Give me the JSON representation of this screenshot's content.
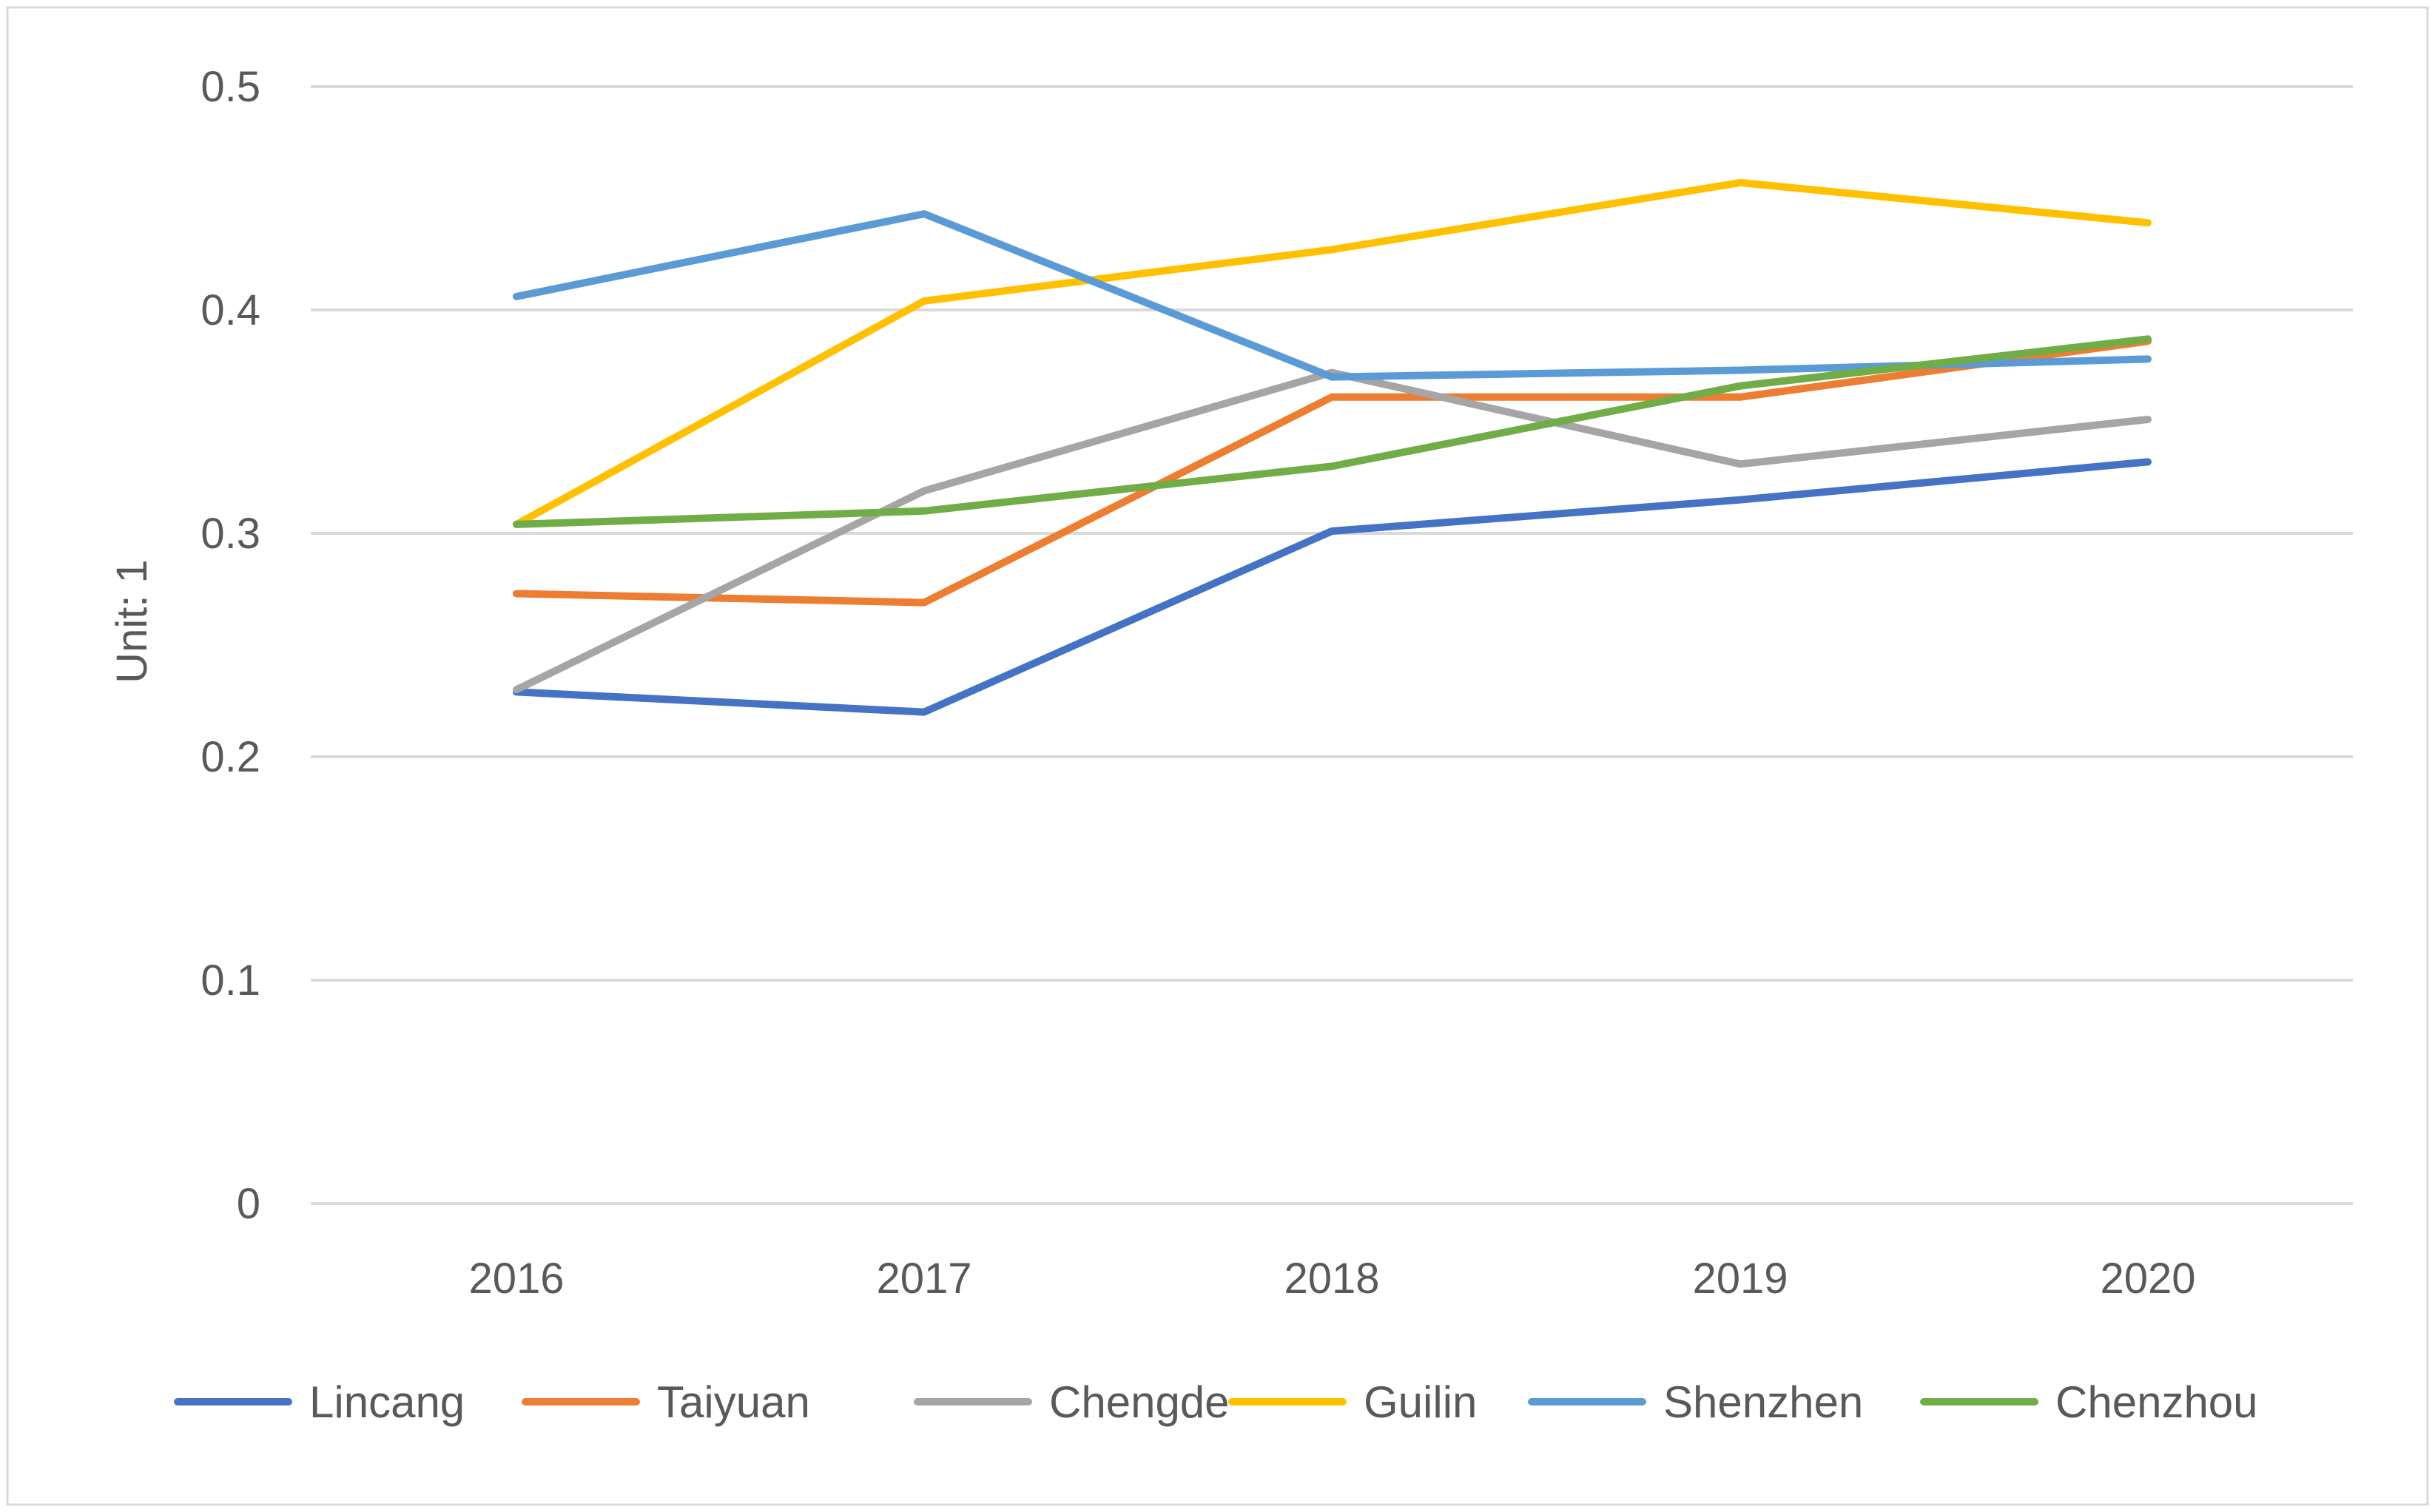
{
  "chart_data": {
    "type": "line",
    "title": "",
    "xlabel": "",
    "ylabel": "Unit: 1",
    "categories": [
      "2016",
      "2017",
      "2018",
      "2019",
      "2020"
    ],
    "ylim": [
      0,
      0.5
    ],
    "yticks": [
      "0",
      "0.1",
      "0.2",
      "0.3",
      "0.4",
      "0.5"
    ],
    "grid": true,
    "legend_position": "bottom",
    "series": [
      {
        "name": "Lincang",
        "color": "#4472C4",
        "values": [
          0.229,
          0.22,
          0.301,
          0.315,
          0.332
        ]
      },
      {
        "name": "Taiyuan",
        "color": "#ED7D31",
        "values": [
          0.273,
          0.269,
          0.361,
          0.361,
          0.386
        ]
      },
      {
        "name": "Chengde",
        "color": "#A5A5A5",
        "values": [
          0.23,
          0.319,
          0.372,
          0.331,
          0.351
        ]
      },
      {
        "name": "Guilin",
        "color": "#FFC000",
        "values": [
          0.304,
          0.404,
          0.427,
          0.457,
          0.439
        ]
      },
      {
        "name": "Shenzhen",
        "color": "#5B9BD5",
        "values": [
          0.406,
          0.443,
          0.37,
          0.373,
          0.378
        ]
      },
      {
        "name": "Chenzhou",
        "color": "#70AD47",
        "values": [
          0.304,
          0.31,
          0.33,
          0.366,
          0.387
        ]
      }
    ]
  }
}
